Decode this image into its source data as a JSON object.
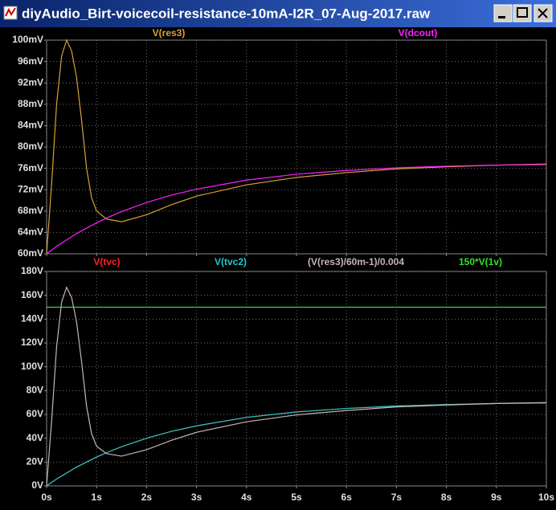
{
  "window": {
    "title": "diyAudio_Birt-voicecoil-resistance-10mA-I2R_07-Aug-2017.raw"
  },
  "chart_data": [
    {
      "type": "line",
      "xlim": [
        0,
        10
      ],
      "xticks": [
        0,
        1,
        2,
        3,
        4,
        5,
        6,
        7,
        8,
        9,
        10
      ],
      "grid": true,
      "ylim": [
        60,
        100
      ],
      "yticks": [
        {
          "value": 60,
          "label": "60mV"
        },
        {
          "value": 64,
          "label": "64mV"
        },
        {
          "value": 68,
          "label": "68mV"
        },
        {
          "value": 72,
          "label": "72mV"
        },
        {
          "value": 76,
          "label": "76mV"
        },
        {
          "value": 80,
          "label": "80mV"
        },
        {
          "value": 84,
          "label": "84mV"
        },
        {
          "value": 88,
          "label": "88mV"
        },
        {
          "value": 92,
          "label": "92mV"
        },
        {
          "value": 96,
          "label": "96mV"
        },
        {
          "value": 100,
          "label": "100mV"
        }
      ],
      "x": [
        0,
        0.1,
        0.2,
        0.3,
        0.4,
        0.5,
        0.6,
        0.7,
        0.8,
        0.9,
        1,
        1.2,
        1.5,
        2,
        2.5,
        3,
        4,
        5,
        6,
        7,
        8,
        9,
        10
      ],
      "series": [
        {
          "name": "V(res3)",
          "color": "#d9a038",
          "values": [
            60,
            73,
            88,
            97,
            100,
            98,
            93,
            85,
            76,
            70.5,
            68,
            66.5,
            66,
            67.3,
            69.2,
            70.8,
            72.9,
            74.3,
            75.2,
            75.9,
            76.3,
            76.6,
            76.8
          ]
        },
        {
          "name": "V(dcout)",
          "color": "#ff20ff",
          "values": [
            60,
            60.7,
            61.4,
            62.0,
            62.6,
            63.2,
            63.8,
            64.3,
            64.8,
            65.3,
            65.8,
            66.7,
            67.9,
            69.6,
            71.0,
            72.1,
            73.8,
            74.9,
            75.6,
            76.1,
            76.4,
            76.6,
            76.7
          ]
        }
      ]
    },
    {
      "type": "line",
      "xlim": [
        0,
        10
      ],
      "xticks": [
        {
          "value": 0,
          "label": "0s"
        },
        {
          "value": 1,
          "label": "1s"
        },
        {
          "value": 2,
          "label": "2s"
        },
        {
          "value": 3,
          "label": "3s"
        },
        {
          "value": 4,
          "label": "4s"
        },
        {
          "value": 5,
          "label": "5s"
        },
        {
          "value": 6,
          "label": "6s"
        },
        {
          "value": 7,
          "label": "7s"
        },
        {
          "value": 8,
          "label": "8s"
        },
        {
          "value": 9,
          "label": "9s"
        },
        {
          "value": 10,
          "label": "10s"
        }
      ],
      "grid": true,
      "ylim": [
        0,
        180
      ],
      "yticks": [
        {
          "value": 0,
          "label": "0V"
        },
        {
          "value": 20,
          "label": "20V"
        },
        {
          "value": 40,
          "label": "40V"
        },
        {
          "value": 60,
          "label": "60V"
        },
        {
          "value": 80,
          "label": "80V"
        },
        {
          "value": 100,
          "label": "100V"
        },
        {
          "value": 120,
          "label": "120V"
        },
        {
          "value": 140,
          "label": "140V"
        },
        {
          "value": 160,
          "label": "160V"
        },
        {
          "value": 180,
          "label": "180V"
        }
      ],
      "x": [
        0,
        0.1,
        0.2,
        0.3,
        0.4,
        0.5,
        0.6,
        0.7,
        0.8,
        0.9,
        1,
        1.2,
        1.5,
        2,
        2.5,
        3,
        4,
        5,
        6,
        7,
        8,
        9,
        10
      ],
      "series": [
        {
          "name": "V(tvc)",
          "color": "#ff2020",
          "values": [
            0,
            2.9,
            5.8,
            8.3,
            10.8,
            13.3,
            15.8,
            17.9,
            20,
            22.1,
            24.2,
            27.9,
            32.9,
            40,
            45.8,
            50.4,
            57.5,
            62.1,
            65,
            67.1,
            68.3,
            69.2,
            69.6
          ]
        },
        {
          "name": "V(tvc2)",
          "color": "#20c8c8",
          "values": [
            0,
            2.9,
            5.8,
            8.3,
            10.8,
            13.3,
            15.8,
            17.9,
            20,
            22.1,
            24.2,
            27.9,
            32.9,
            40,
            45.8,
            50.4,
            57.5,
            62.1,
            65,
            67.1,
            68.3,
            69.2,
            69.6
          ]
        },
        {
          "name": "(V(res3)/60m-1)/0.004",
          "color": "#c8b4b4",
          "values": [
            0,
            54.2,
            116.7,
            154.2,
            166.7,
            158.3,
            137.5,
            104.2,
            66.7,
            43.8,
            33.3,
            27.1,
            25,
            30.4,
            38.3,
            45,
            53.8,
            59.6,
            63.3,
            66.3,
            67.9,
            69.2,
            70
          ]
        },
        {
          "name": "150*V(1v)",
          "color": "#30e030",
          "values": [
            150,
            150,
            150,
            150,
            150,
            150,
            150,
            150,
            150,
            150,
            150,
            150,
            150,
            150,
            150,
            150,
            150,
            150,
            150,
            150,
            150,
            150,
            150
          ]
        }
      ]
    }
  ]
}
